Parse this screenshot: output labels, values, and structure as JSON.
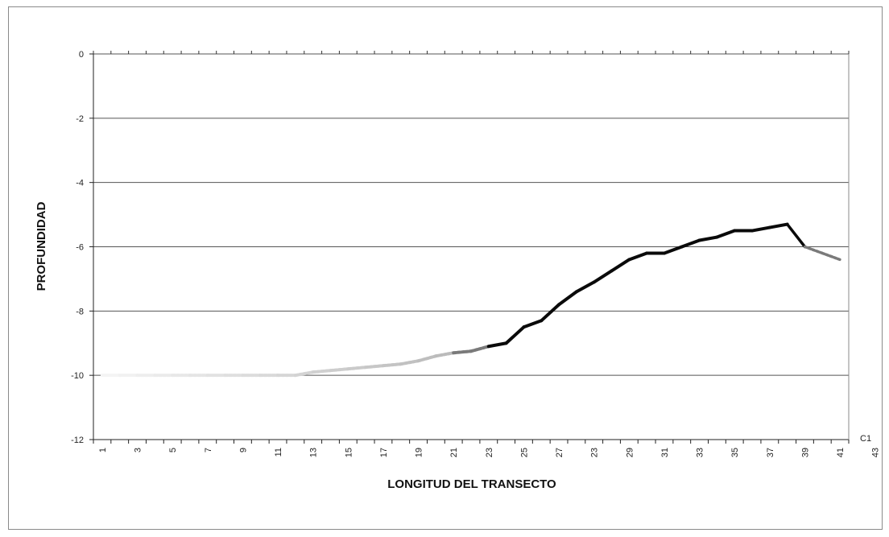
{
  "chart_data": {
    "type": "line",
    "title": "",
    "xlabel": "LONGITUD DEL TRANSECTO",
    "ylabel": "PROFUNDIDAD",
    "ylim": [
      -12,
      0
    ],
    "yticks": [
      0,
      -2,
      -4,
      -6,
      -8,
      -10,
      -12
    ],
    "x_tick_labels": [
      "1",
      "3",
      "5",
      "7",
      "9",
      "11",
      "13",
      "15",
      "17",
      "19",
      "21",
      "23",
      "25",
      "27",
      "23",
      "29",
      "31",
      "33",
      "35",
      "37",
      "39",
      "41",
      "43"
    ],
    "grid": "horizontal",
    "series": [
      {
        "name": "C1",
        "x": [
          1,
          2,
          3,
          4,
          5,
          6,
          7,
          8,
          9,
          10,
          11,
          12,
          13,
          14,
          15,
          16,
          17,
          18,
          19,
          20,
          21,
          22,
          23,
          24,
          25,
          26,
          27,
          28,
          29,
          30,
          31,
          32,
          33,
          34,
          35,
          36,
          37,
          38,
          39,
          40,
          41,
          42,
          43
        ],
        "values": [
          -10,
          -10,
          -10,
          -10,
          -10,
          -10,
          -10,
          -10,
          -10,
          -10,
          -10,
          -10,
          -9.9,
          -9.85,
          -9.8,
          -9.75,
          -9.7,
          -9.65,
          -9.55,
          -9.4,
          -9.3,
          -9.25,
          -9.1,
          -9.0,
          -8.5,
          -8.3,
          -7.8,
          -7.4,
          -7.1,
          -6.75,
          -6.4,
          -6.2,
          -6.2,
          -6.0,
          -5.8,
          -5.7,
          -5.5,
          -5.5,
          -5.4,
          -5.3,
          -6.0,
          -6.2,
          -6.4
        ],
        "colors": {
          "start": "#f4f4f4",
          "mid": "#7a7a7a",
          "main": "#0a0a0a"
        }
      }
    ],
    "legend": {
      "label": "C1",
      "placement": "right"
    }
  }
}
